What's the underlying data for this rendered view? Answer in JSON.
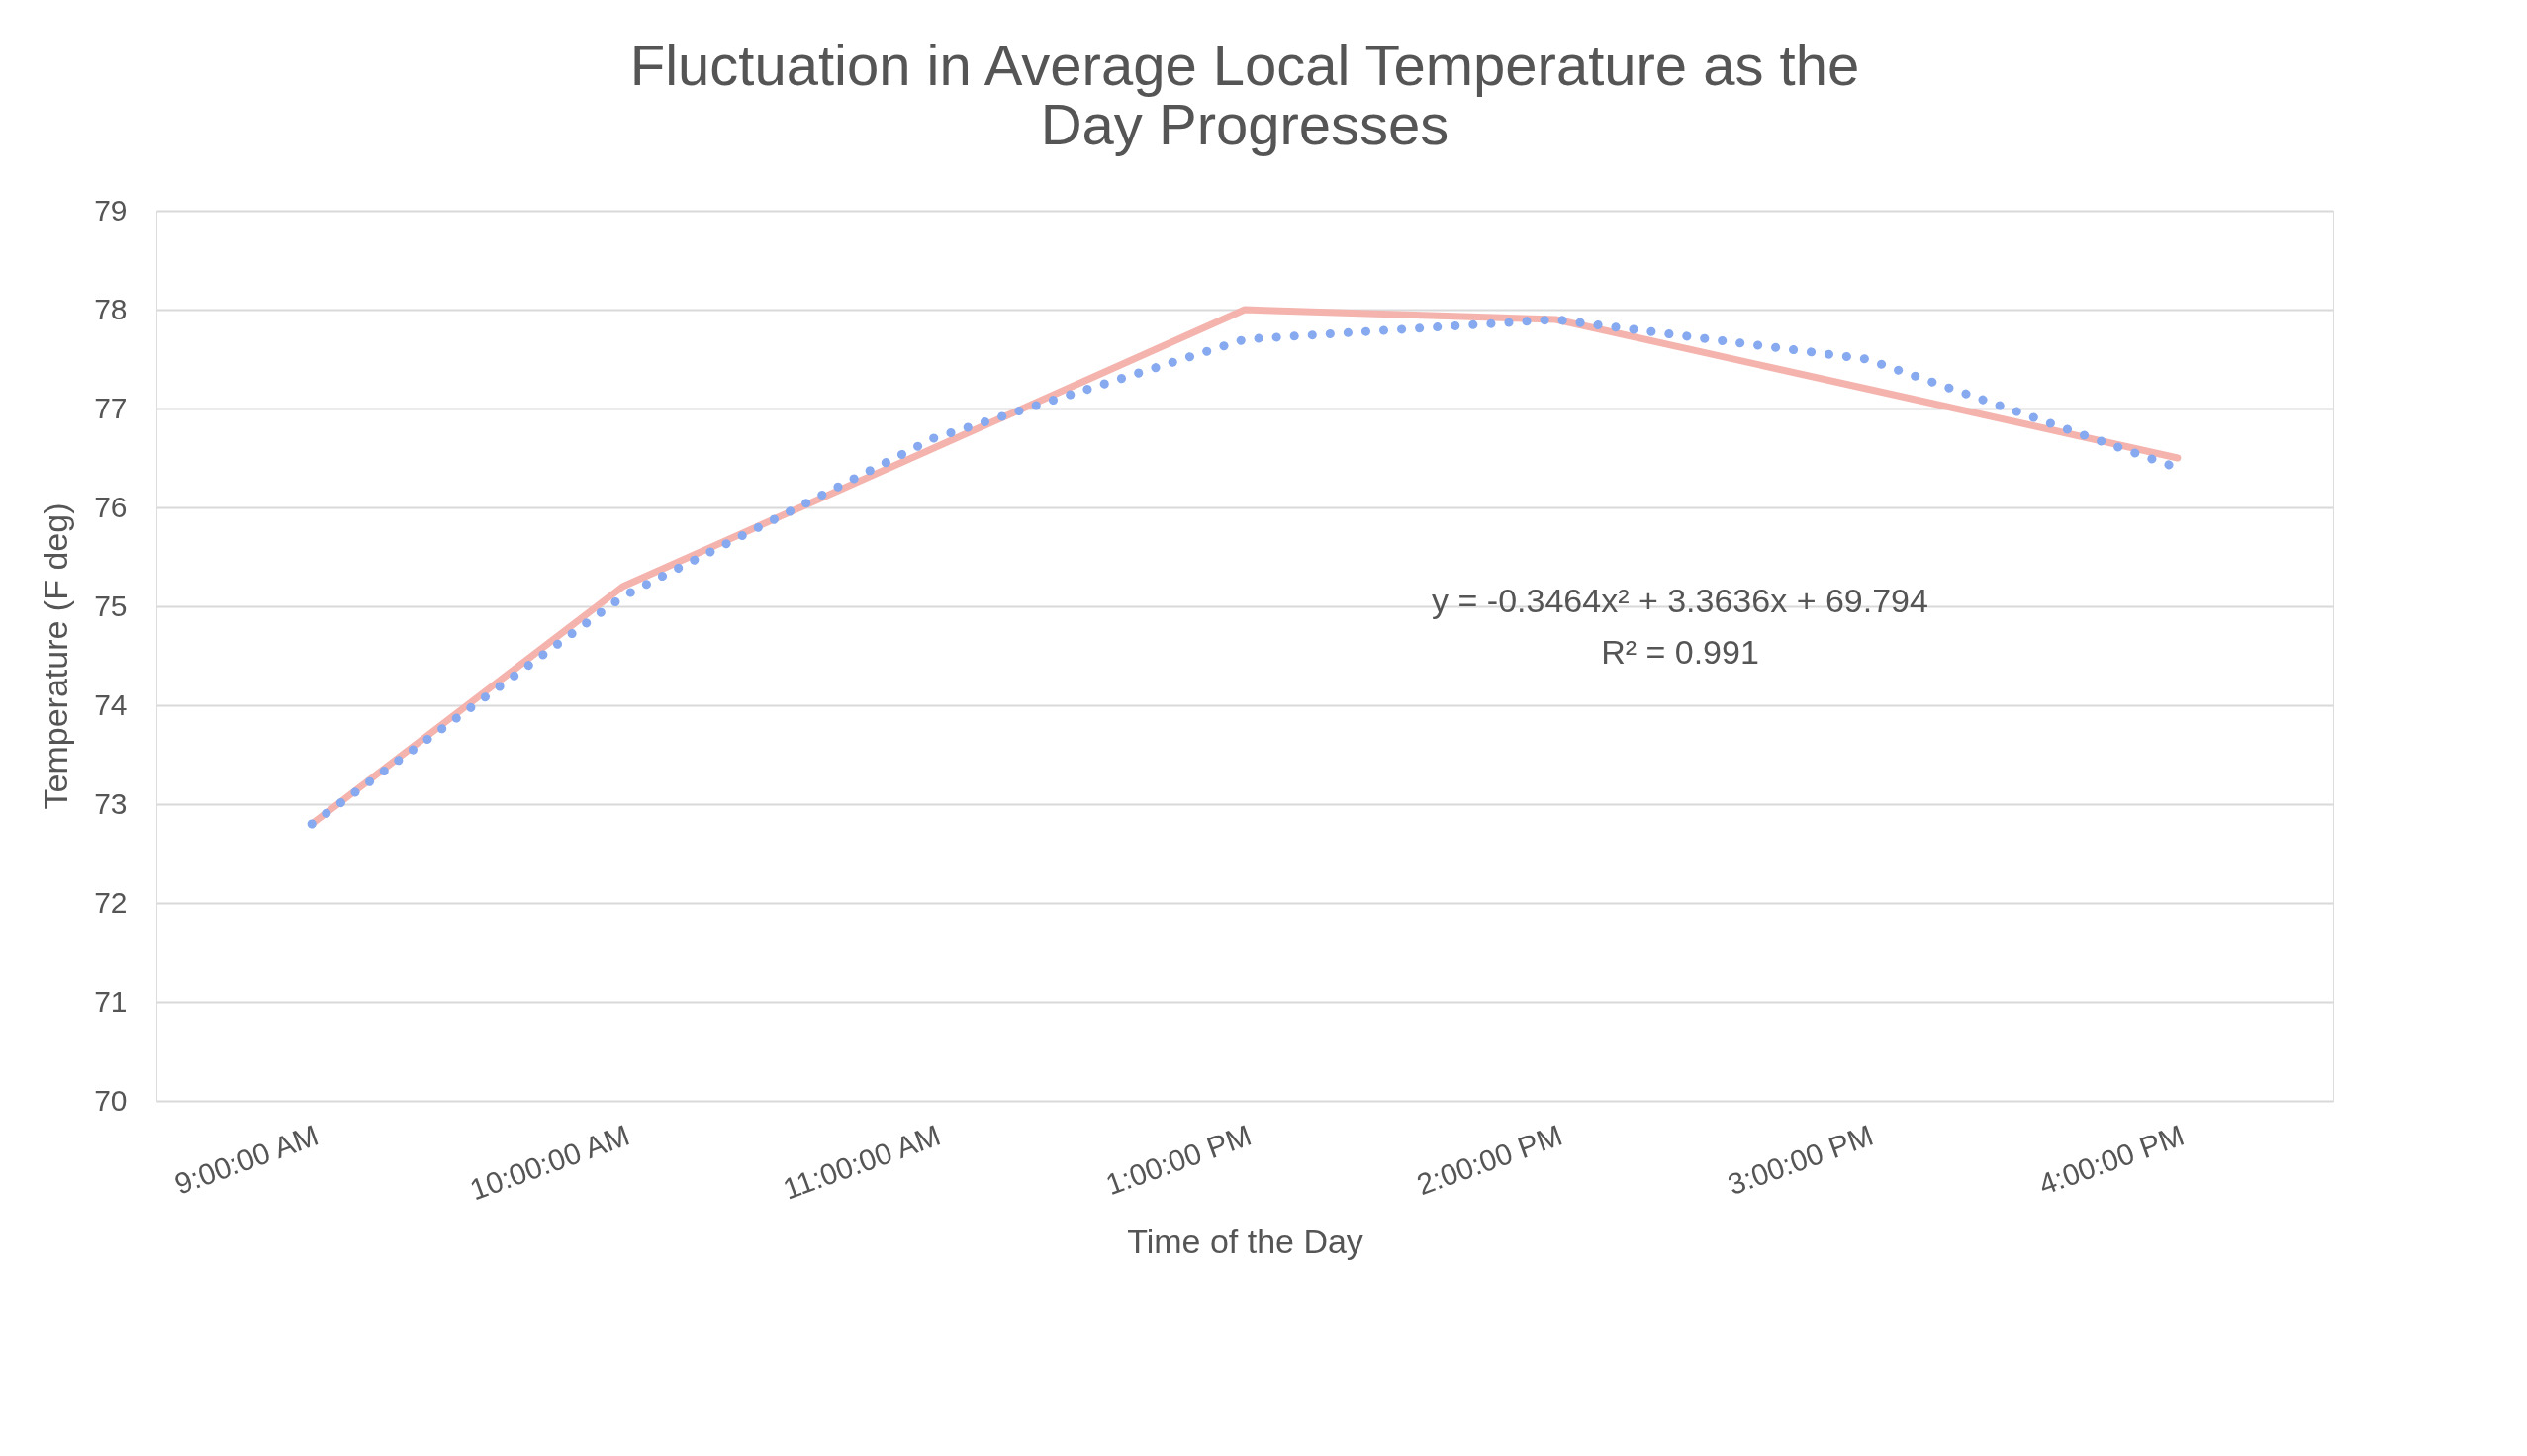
{
  "chart_data": {
    "type": "line",
    "title": [
      "Fluctuation in Average Local Temperature as the",
      "Day Progresses"
    ],
    "xlabel": "Time of the Day",
    "ylabel": "Temperature (F deg)",
    "categories": [
      "9:00:00 AM",
      "10:00:00 AM",
      "11:00:00 AM",
      "1:00:00 PM",
      "2:00:00 PM",
      "3:00:00 PM",
      "4:00:00 PM"
    ],
    "series": [
      {
        "color": "#f4b3ad",
        "values": [
          72.8,
          75.2,
          76.6,
          78.0,
          77.9,
          77.2,
          76.5
        ],
        "line_style": "solid"
      },
      {
        "color": "#86a9f0",
        "values": [
          72.8,
          75.1,
          76.7,
          77.7,
          77.9,
          77.5,
          76.4
        ],
        "line_style": "dotted"
      }
    ],
    "ylim": [
      70,
      79
    ],
    "yticks": [
      70,
      71,
      72,
      73,
      74,
      75,
      76,
      77,
      78,
      79
    ],
    "grid": "y",
    "annotations": [
      "y = -0.3464x² + 3.3636x + 69.794",
      "R² = 0.991"
    ]
  }
}
